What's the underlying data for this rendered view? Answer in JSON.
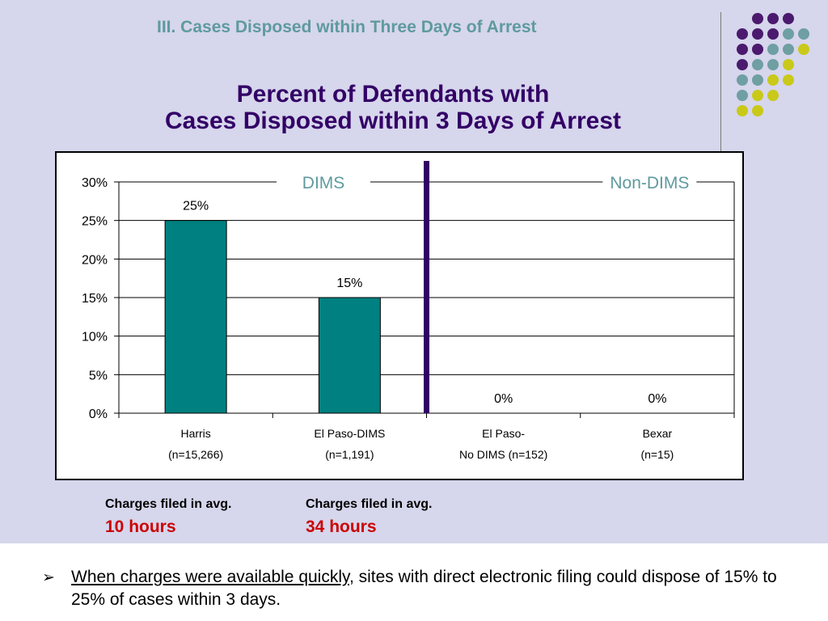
{
  "slide": {
    "section_title": "III.  Cases Disposed within Three Days of Arrest",
    "title_line1": "Percent of Defendants with",
    "title_line2": "Cases Disposed within 3 Days of Arrest"
  },
  "chart_data": {
    "type": "bar",
    "categories": [
      "Harris",
      "El Paso-DIMS",
      "El Paso-",
      "Bexar"
    ],
    "category_sublabels": [
      "(n=15,266)",
      "(n=1,191)",
      "No DIMS (n=152)",
      "(n=15)"
    ],
    "values": [
      25,
      15,
      0,
      0
    ],
    "value_labels": [
      "25%",
      "15%",
      "0%",
      "0%"
    ],
    "ylim": [
      0,
      30
    ],
    "yticks": [
      0,
      5,
      10,
      15,
      20,
      25,
      30
    ],
    "ytick_labels": [
      "0%",
      "5%",
      "10%",
      "15%",
      "20%",
      "25%",
      "30%"
    ],
    "grid": true,
    "group_labels": [
      "DIMS",
      "Non-DIMS"
    ],
    "bar_color": "#008080",
    "divider_color": "#330066",
    "group_label_color": "#5f9a9f"
  },
  "notes": [
    {
      "label": "Charges filed in avg.",
      "value": "10 hours"
    },
    {
      "label": "Charges filed in avg.",
      "value": "34 hours"
    }
  ],
  "bullet": {
    "icon": "arrow-bullet-icon",
    "underlined": "When charges were available quickly",
    "rest": ", sites with direct electronic filing could dispose of 15% to 25% of cases within 3 days."
  },
  "decoration": {
    "dot_colors": {
      "purple": "#4b1a6e",
      "teal": "#6f9fa3",
      "yellow": "#c9c919"
    }
  }
}
